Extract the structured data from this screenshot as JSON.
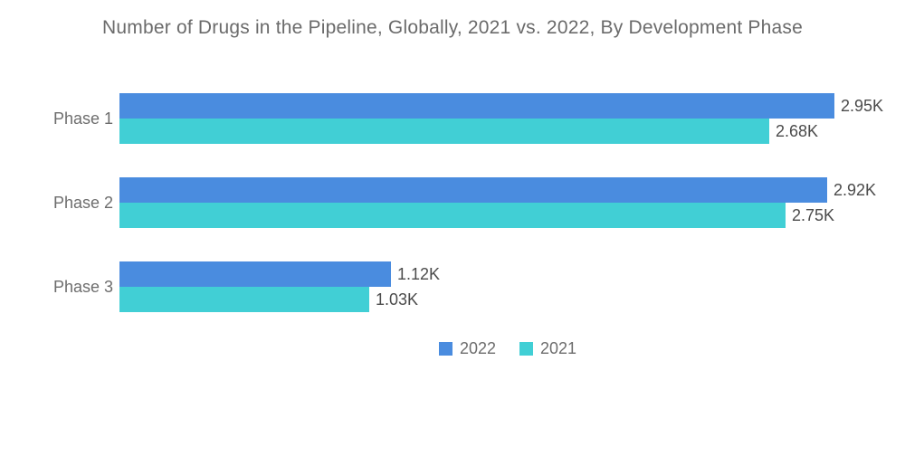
{
  "chart_data": {
    "type": "bar",
    "orientation": "horizontal",
    "title": "Number of Drugs in the Pipeline, Globally, 2021 vs. 2022, By Development Phase",
    "categories": [
      "Phase 1",
      "Phase 2",
      "Phase 3"
    ],
    "series": [
      {
        "name": "2022",
        "color": "#4a8cdf",
        "values": [
          2.95,
          2.92,
          1.12
        ],
        "value_labels": [
          "2.95K",
          "2.92K",
          "1.12K"
        ]
      },
      {
        "name": "2021",
        "color": "#41cfd5",
        "values": [
          2.68,
          2.75,
          1.03
        ],
        "value_labels": [
          "2.68K",
          "2.75K",
          "1.03K"
        ]
      }
    ],
    "unit": "K",
    "xlim": [
      0,
      3.1
    ],
    "grid": false,
    "legend_position": "bottom",
    "value_labels_shown": true,
    "colors": {
      "title_text": "#6b6b6b",
      "category_text": "#6d6d6d",
      "value_text": "#4b4b4b",
      "background": "#ffffff"
    }
  }
}
